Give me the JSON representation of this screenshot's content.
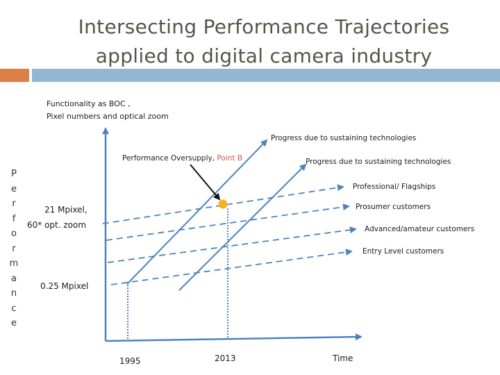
{
  "title": {
    "line1": "Intersecting Performance Trajectories",
    "line2": "applied to digital camera industry"
  },
  "vertical_axis_letters": [
    "P",
    "e",
    "r",
    "f",
    "o",
    "r",
    "m",
    "a",
    "n",
    "c",
    "e"
  ],
  "diagram": {
    "y_axis_label_line1": "Functionality as BOC ,",
    "y_axis_label_line2": "Pixel numbers and optical zoom",
    "x_axis_label": "Time",
    "y_tick_high_line1": "21 Mpixel,",
    "y_tick_high_line2": "60* opt. zoom",
    "y_tick_low": "0.25 Mpixel",
    "x_tick_1995": "1995",
    "x_tick_2013": "2013",
    "oversupply_label": "Performance Oversupply, ",
    "oversupply_point": "Point B",
    "sustaining_1": "Progress due to sustaining technologies",
    "sustaining_2": "Progress due to sustaining technologies",
    "segment_professional": "Professional/ Flagships",
    "segment_prosumer": "Prosumer customers",
    "segment_advanced": "Advanced/amateur customers",
    "segment_entry": "Entry Level customers"
  },
  "colors": {
    "line_blue": "#4f81bd",
    "point_orange": "#f5b324",
    "point_b_text": "#d9534f",
    "bar_orange": "#dd8047",
    "bar_blue": "#94b6d2"
  }
}
